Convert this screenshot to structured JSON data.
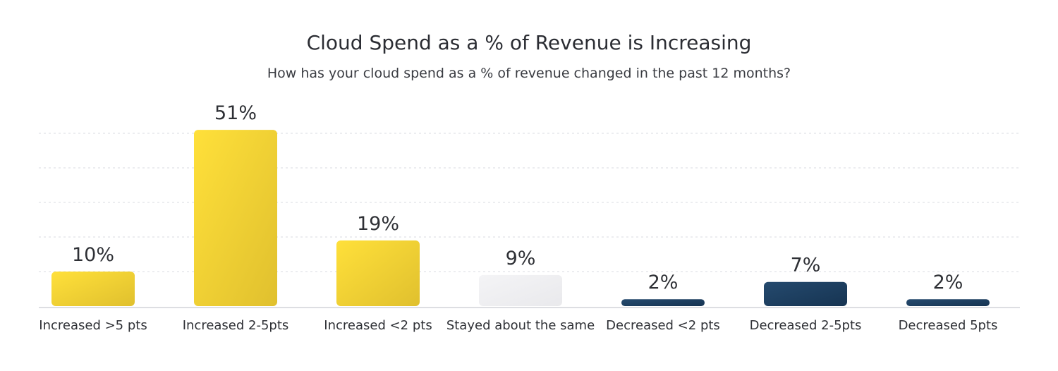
{
  "chart_data": {
    "type": "bar",
    "title": "Cloud Spend as a % of Revenue is Increasing",
    "subtitle": "How has your cloud spend as a % of revenue changed in the past 12 months?",
    "categories": [
      "Increased >5 pts",
      "Increased 2-5pts",
      "Increased <2 pts",
      "Stayed about the same",
      "Decreased <2 pts",
      "Decreased 2-5pts",
      "Decreased 5pts"
    ],
    "values": [
      10,
      51,
      19,
      9,
      2,
      7,
      2
    ],
    "value_labels": [
      "10%",
      "51%",
      "19%",
      "9%",
      "2%",
      "7%",
      "2%"
    ],
    "bar_groups": [
      "increase",
      "increase",
      "increase",
      "neutral",
      "decrease",
      "decrease",
      "decrease"
    ],
    "xlabel": "",
    "ylabel": "",
    "ylim": [
      0,
      50
    ],
    "gridlines": [
      10,
      20,
      30,
      40,
      50
    ],
    "grid": true,
    "legend": "none"
  },
  "colors": {
    "increase_start": "#ffe03a",
    "increase_end": "#e0c02e",
    "neutral_start": "#f4f4f6",
    "neutral_end": "#e9e9ec",
    "decrease_start": "#254a6e",
    "decrease_end": "#163452"
  }
}
